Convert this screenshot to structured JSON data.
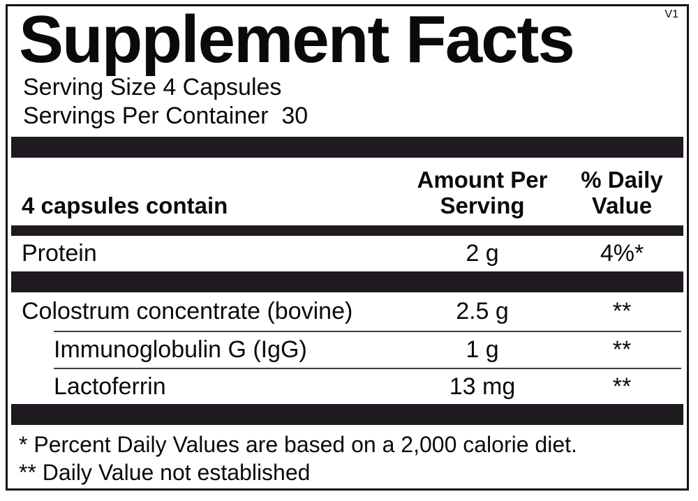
{
  "version_tag": "V1",
  "title": "Supplement Facts",
  "serving": {
    "size": "Serving Size 4 Capsules",
    "per_container": "Servings Per Container  30"
  },
  "table": {
    "header": {
      "contains": "4 capsules contain",
      "amount_line1": "Amount Per",
      "amount_line2": "Serving",
      "dv_line1": "% Daily",
      "dv_line2": "Value"
    },
    "rows": [
      {
        "name": "Protein",
        "amount": "2 g",
        "dv": "4%*"
      },
      {
        "name": "Colostrum concentrate (bovine)",
        "amount": "2.5 g",
        "dv": "**"
      },
      {
        "name": "Immunoglobulin G (IgG)",
        "amount": "1 g",
        "dv": "**"
      },
      {
        "name": "Lactoferrin",
        "amount": "13 mg",
        "dv": "**"
      }
    ]
  },
  "footnotes": {
    "percent_dv": "* Percent Daily Values are based on a 2,000 calorie diet.",
    "not_established": "** Daily Value not established"
  },
  "colors": {
    "bar": "#1f1a1f",
    "text": "#0a0a0a",
    "border": "#111111",
    "bg": "#ffffff",
    "sep": "#3d3d3d"
  }
}
